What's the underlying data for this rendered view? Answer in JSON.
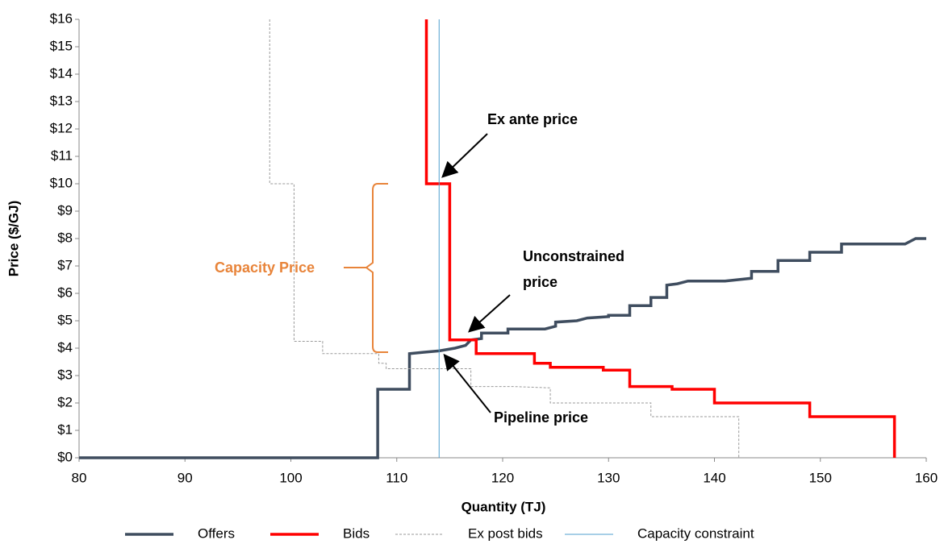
{
  "chart_data": {
    "type": "line",
    "x_label": "Quantity (TJ)",
    "y_label": "Price ($/GJ)",
    "xlim": [
      80,
      160
    ],
    "xticks": [
      80,
      90,
      100,
      110,
      120,
      130,
      140,
      150,
      160
    ],
    "ylim": [
      0,
      16
    ],
    "yticks": [
      {
        "value": 0,
        "label": "$0"
      },
      {
        "value": 1,
        "label": "$1"
      },
      {
        "value": 2,
        "label": "$2"
      },
      {
        "value": 3,
        "label": "$3"
      },
      {
        "value": 4,
        "label": "$4"
      },
      {
        "value": 5,
        "label": "$5"
      },
      {
        "value": 6,
        "label": "$6"
      },
      {
        "value": 7,
        "label": "$7"
      },
      {
        "value": 8,
        "label": "$8"
      },
      {
        "value": 9,
        "label": "$9"
      },
      {
        "value": 10,
        "label": "$10"
      },
      {
        "value": 11,
        "label": "$11"
      },
      {
        "value": 12,
        "label": "$12"
      },
      {
        "value": 13,
        "label": "$13"
      },
      {
        "value": 14,
        "label": "$14"
      },
      {
        "value": 15,
        "label": "$15"
      },
      {
        "value": 16,
        "label": "$16"
      }
    ],
    "grid": false,
    "legend": "bottom",
    "series": [
      {
        "name": "Offers",
        "color": "#3f4d5f",
        "x": [
          80,
          108.2,
          108.2,
          111.2,
          111.2,
          112.5,
          114,
          115.5,
          116.5,
          117,
          118,
          118,
          120.5,
          120.5,
          124,
          125,
          125,
          127,
          128,
          130,
          130,
          132,
          132,
          134,
          134,
          135.5,
          135.5,
          136.5,
          137.5,
          141,
          143.5,
          143.5,
          146,
          146,
          149,
          149,
          152,
          152,
          158,
          159,
          160
        ],
        "values": [
          0,
          0,
          2.5,
          2.5,
          3.8,
          3.85,
          3.9,
          4.0,
          4.1,
          4.3,
          4.35,
          4.55,
          4.55,
          4.7,
          4.7,
          4.8,
          4.95,
          5.0,
          5.1,
          5.15,
          5.2,
          5.2,
          5.55,
          5.55,
          5.85,
          5.85,
          6.3,
          6.35,
          6.45,
          6.45,
          6.55,
          6.8,
          6.8,
          7.2,
          7.2,
          7.5,
          7.5,
          7.8,
          7.8,
          8.0,
          8.0
        ]
      },
      {
        "name": "Bids",
        "color": "#ff0000",
        "x": [
          112.8,
          112.8,
          115,
          115,
          117.5,
          117.5,
          123,
          123,
          124.5,
          124.5,
          129.5,
          129.5,
          132,
          132,
          136,
          136,
          140,
          140,
          149,
          149,
          157,
          157
        ],
        "values": [
          16,
          10,
          10,
          4.3,
          4.3,
          3.8,
          3.8,
          3.45,
          3.45,
          3.3,
          3.3,
          3.2,
          3.2,
          2.6,
          2.6,
          2.5,
          2.5,
          2.0,
          2.0,
          1.5,
          1.5,
          0
        ]
      },
      {
        "name": "Ex post bids",
        "color": "#9a9a9a",
        "dashed": true,
        "x": [
          98,
          98,
          100.3,
          100.3,
          103,
          103,
          108.3,
          108.3,
          109,
          109,
          117,
          117,
          121,
          124.5,
          124.5,
          134,
          134,
          142.3,
          142.3
        ],
        "values": [
          16,
          10,
          10,
          4.25,
          4.25,
          3.8,
          3.8,
          3.45,
          3.45,
          3.25,
          3.25,
          2.6,
          2.6,
          2.55,
          2.0,
          2.0,
          1.5,
          1.5,
          0
        ]
      },
      {
        "name": "Capacity constraint",
        "color": "#4f9fcf",
        "x": [
          114,
          114
        ],
        "values": [
          16,
          0
        ]
      }
    ],
    "annotations": [
      "Ex ante price",
      "Unconstrained price",
      "Pipeline price",
      "Capacity Price"
    ],
    "annotation_color": "#e8843a"
  }
}
